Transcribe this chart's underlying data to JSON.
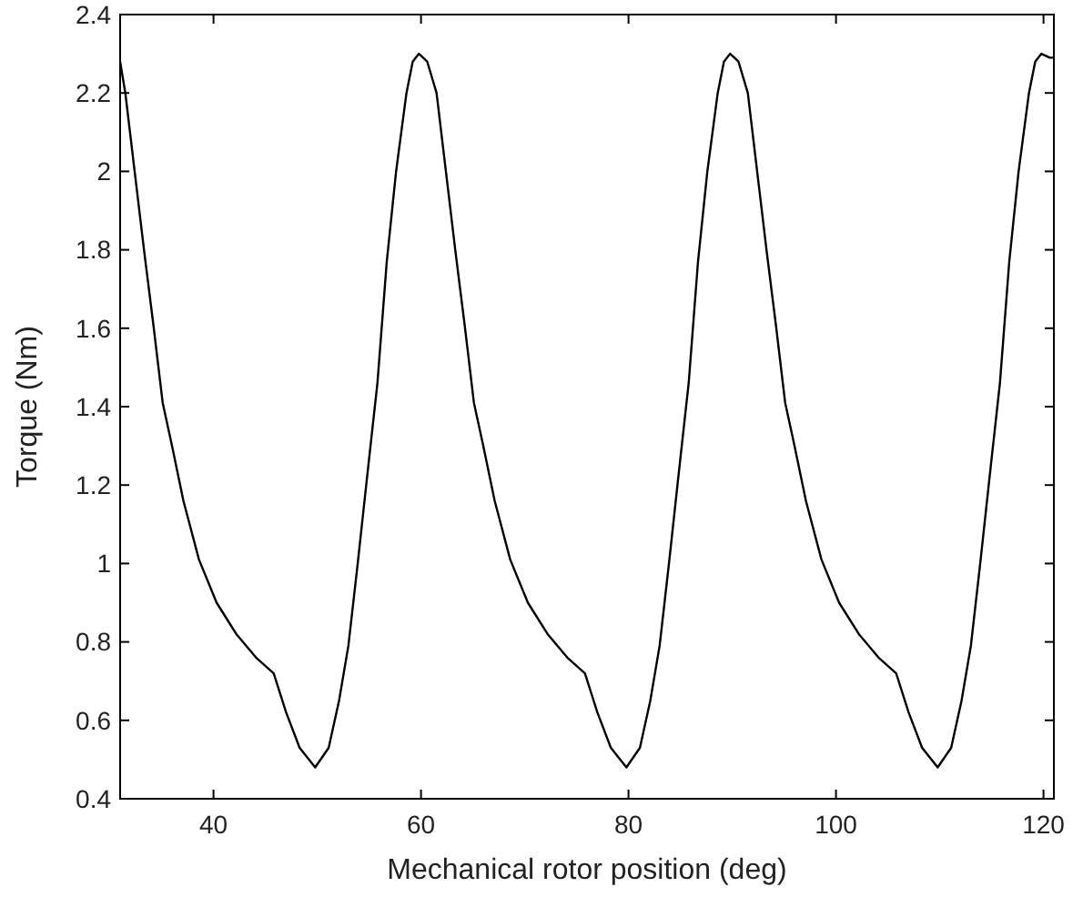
{
  "chart_data": {
    "type": "line",
    "xlabel": "Mechanical rotor position (deg)",
    "ylabel": "Torque (Nm)",
    "xlim": [
      31,
      121
    ],
    "xticks": [
      40,
      60,
      80,
      100,
      120
    ],
    "ylim": [
      0.4,
      2.4
    ],
    "yticks": [
      0.4,
      0.6,
      0.8,
      1,
      1.2,
      1.4,
      1.6,
      1.8,
      2,
      2.2,
      2.4
    ],
    "grid": false,
    "marker": "none",
    "line_style": "solid",
    "series": [
      {
        "color": "#000000",
        "x": [
          31.0,
          31.5,
          32.4,
          33.3,
          34.2,
          35.1,
          36.0,
          37.1,
          38.6,
          40.3,
          42.2,
          44.1,
          45.8,
          47.0,
          48.3,
          49.8,
          51.1,
          52.1,
          53.0,
          53.9,
          54.8,
          55.8,
          56.7,
          57.6,
          58.6,
          59.2,
          59.8,
          60.6,
          61.5,
          62.4,
          63.3,
          64.2,
          65.1,
          66.0,
          67.1,
          68.6,
          70.3,
          72.2,
          74.1,
          75.8,
          77.0,
          78.3,
          79.8,
          81.1,
          82.1,
          83.0,
          83.9,
          84.8,
          85.8,
          86.7,
          87.6,
          88.6,
          89.2,
          89.8,
          90.6,
          91.5,
          92.4,
          93.3,
          94.2,
          95.1,
          96.0,
          97.1,
          98.6,
          100.3,
          102.2,
          104.1,
          105.8,
          107.0,
          108.3,
          109.8,
          111.1,
          112.1,
          113.0,
          113.9,
          114.8,
          115.8,
          116.7,
          117.6,
          118.6,
          119.2,
          119.8,
          120.6,
          121.0
        ],
        "values": [
          2.28,
          2.2,
          2.0,
          1.8,
          1.61,
          1.41,
          1.3,
          1.16,
          1.01,
          0.9,
          0.82,
          0.76,
          0.72,
          0.62,
          0.53,
          0.48,
          0.53,
          0.65,
          0.79,
          1.0,
          1.22,
          1.46,
          1.77,
          2.0,
          2.2,
          2.28,
          2.3,
          2.28,
          2.2,
          2.0,
          1.8,
          1.61,
          1.41,
          1.3,
          1.16,
          1.01,
          0.9,
          0.82,
          0.76,
          0.72,
          0.62,
          0.53,
          0.48,
          0.53,
          0.65,
          0.79,
          1.0,
          1.22,
          1.46,
          1.77,
          2.0,
          2.2,
          2.28,
          2.3,
          2.28,
          2.2,
          2.0,
          1.8,
          1.61,
          1.41,
          1.3,
          1.16,
          1.01,
          0.9,
          0.82,
          0.76,
          0.72,
          0.62,
          0.53,
          0.48,
          0.53,
          0.65,
          0.79,
          1.0,
          1.22,
          1.46,
          1.77,
          2.0,
          2.2,
          2.28,
          2.3,
          2.29,
          2.29
        ]
      }
    ]
  }
}
